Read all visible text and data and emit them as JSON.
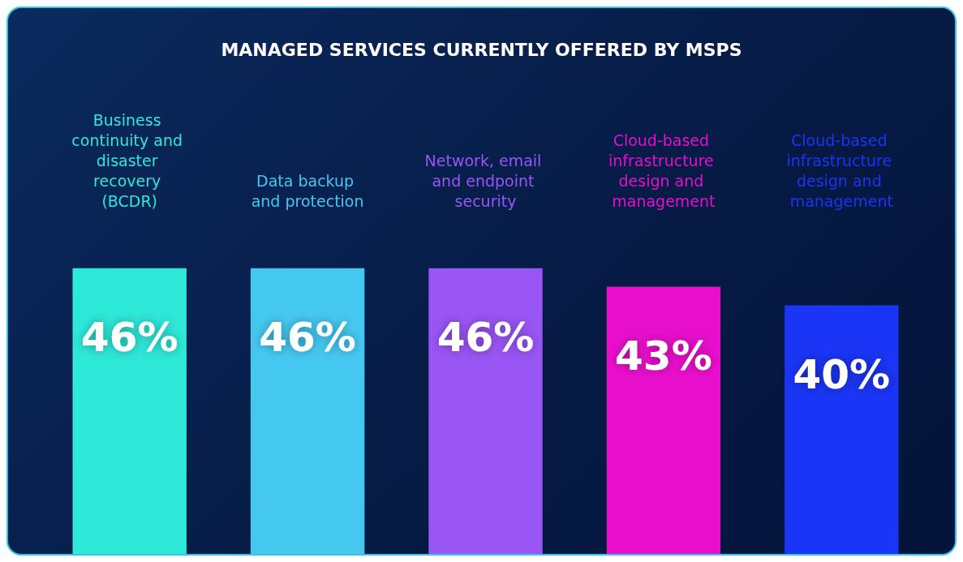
{
  "chart_data": {
    "type": "bar",
    "title": "MANAGED SERVICES CURRENTLY OFFERED BY MSPS",
    "categories": [
      "Business continuity and disaster recovery (BCDR)",
      "Data backup and protection",
      "Network, email and endpoint security",
      "Cloud-based infrastructure design and management",
      "Cloud-based infrastructure design and management"
    ],
    "values": [
      46,
      46,
      46,
      43,
      40
    ],
    "value_labels": [
      "46%",
      "46%",
      "46%",
      "43%",
      "40%"
    ],
    "colors": [
      "#2ee8d8",
      "#45c8f0",
      "#9a55f5",
      "#e80fcc",
      "#1a35f5"
    ],
    "grid": false
  }
}
